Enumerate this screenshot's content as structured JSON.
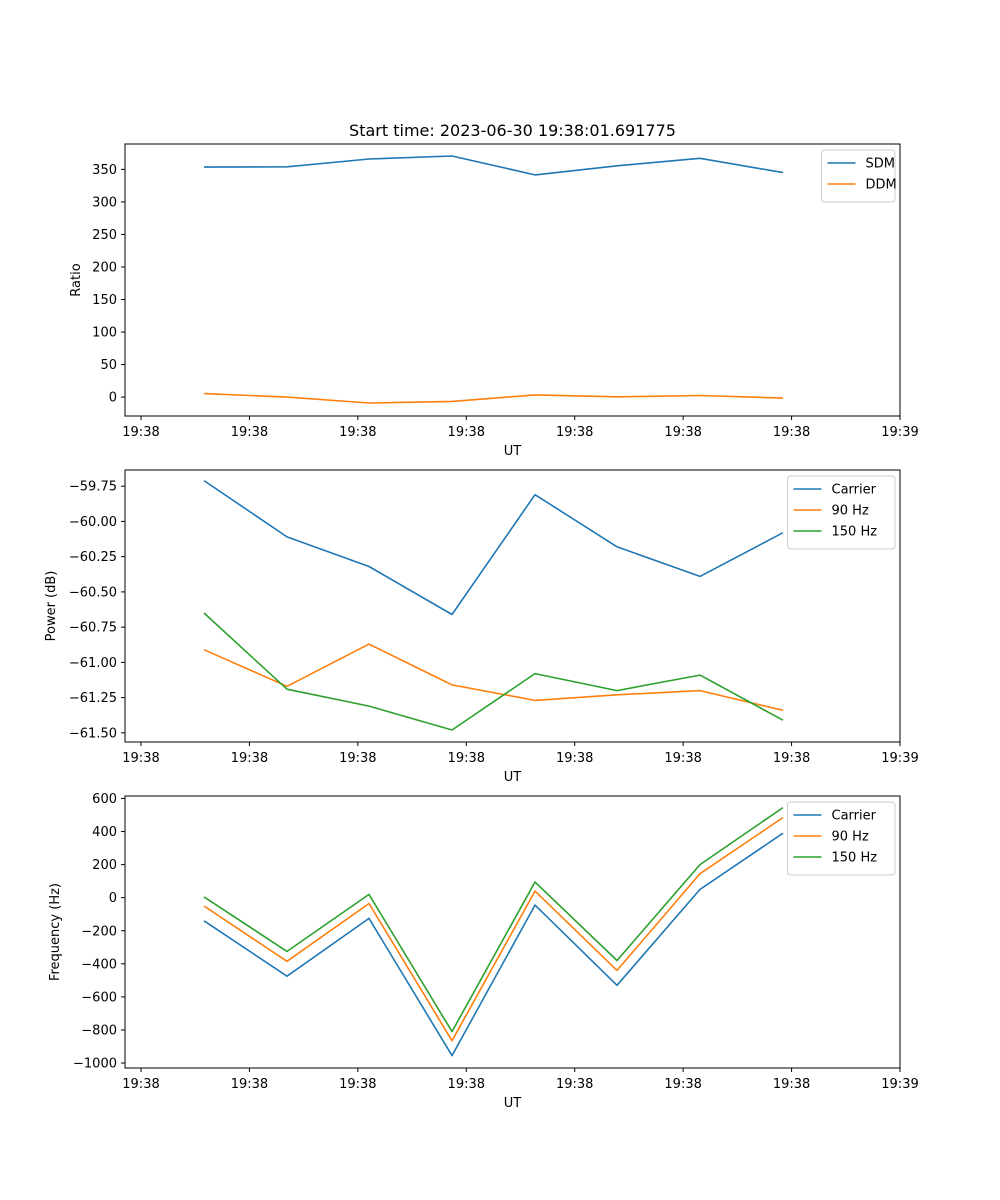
{
  "chart_data": [
    {
      "type": "line",
      "title": "Start time: 2023-06-30 19:38:01.691775",
      "xlabel": "UT",
      "ylabel": "Ratio",
      "x_tick_labels": [
        "19:38",
        "19:38",
        "19:38",
        "19:38",
        "19:38",
        "19:38",
        "19:38",
        "19:39"
      ],
      "y_ticks": [
        "0",
        "50",
        "100",
        "150",
        "200",
        "250",
        "300",
        "350"
      ],
      "y_tick_values": [
        0,
        50,
        100,
        150,
        200,
        250,
        300,
        350
      ],
      "ylim": [
        -29,
        389
      ],
      "legend": "top-right",
      "grid": false,
      "series": [
        {
          "name": "SDM",
          "color": "#1f77b4",
          "values": [
            353.5,
            354,
            366,
            370.5,
            341.5,
            355.5,
            367,
            345
          ]
        },
        {
          "name": "DDM",
          "color": "#ff7f0e",
          "values": [
            5.5,
            0,
            -9,
            -6.5,
            3.5,
            0.5,
            2.5,
            -1.5
          ]
        }
      ]
    },
    {
      "type": "line",
      "title": "",
      "xlabel": "UT",
      "ylabel": "Power (dB)",
      "x_tick_labels": [
        "19:38",
        "19:38",
        "19:38",
        "19:38",
        "19:38",
        "19:38",
        "19:38",
        "19:39"
      ],
      "y_ticks": [
        "−61.50",
        "−61.25",
        "−61.00",
        "−60.75",
        "−60.50",
        "−60.25",
        "−60.00",
        "−59.75"
      ],
      "y_tick_values": [
        -61.5,
        -61.25,
        -61.0,
        -60.75,
        -60.5,
        -60.25,
        -60.0,
        -59.75
      ],
      "ylim": [
        -61.565,
        -59.635
      ],
      "legend": "top-right",
      "grid": false,
      "series": [
        {
          "name": "Carrier",
          "color": "#1f77b4",
          "values": [
            -59.71,
            -60.11,
            -60.32,
            -60.66,
            -59.81,
            -60.18,
            -60.39,
            -60.08
          ]
        },
        {
          "name": "90 Hz",
          "color": "#ff7f0e",
          "values": [
            -60.91,
            -61.17,
            -60.87,
            -61.16,
            -61.27,
            -61.23,
            -61.2,
            -61.34
          ]
        },
        {
          "name": "150 Hz",
          "color": "#2ca02c",
          "values": [
            -60.65,
            -61.19,
            -61.31,
            -61.48,
            -61.08,
            -61.2,
            -61.09,
            -61.41
          ]
        }
      ]
    },
    {
      "type": "line",
      "title": "",
      "xlabel": "UT",
      "ylabel": "Frequency (Hz)",
      "x_tick_labels": [
        "19:38",
        "19:38",
        "19:38",
        "19:38",
        "19:38",
        "19:38",
        "19:38",
        "19:39"
      ],
      "y_ticks": [
        "−1000",
        "−800",
        "−600",
        "−400",
        "−200",
        "0",
        "200",
        "400",
        "600"
      ],
      "y_tick_values": [
        -1000,
        -800,
        -600,
        -400,
        -200,
        0,
        200,
        400,
        600
      ],
      "ylim": [
        -1030,
        615
      ],
      "legend": "top-right",
      "grid": false,
      "series": [
        {
          "name": "Carrier",
          "color": "#1f77b4",
          "values": [
            -140,
            -475,
            -125,
            -955,
            -45,
            -530,
            50,
            390
          ]
        },
        {
          "name": "90 Hz",
          "color": "#ff7f0e",
          "values": [
            -50,
            -385,
            -35,
            -865,
            40,
            -440,
            145,
            485
          ]
        },
        {
          "name": "150 Hz",
          "color": "#2ca02c",
          "values": [
            5,
            -325,
            20,
            -810,
            95,
            -380,
            200,
            545
          ]
        }
      ]
    }
  ]
}
